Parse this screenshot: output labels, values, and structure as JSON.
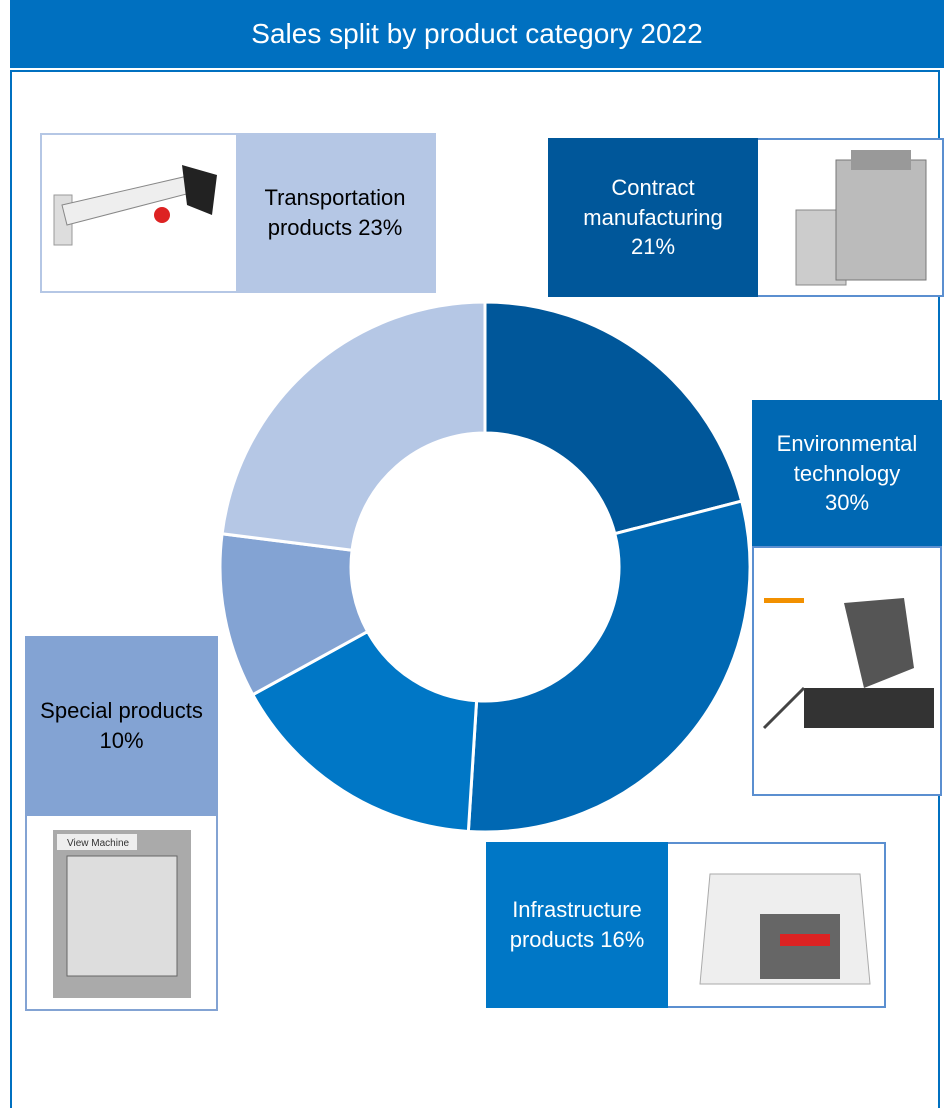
{
  "chart_data": {
    "type": "donut",
    "title": "Sales split by product category 2022",
    "categories": [
      "Contract manufacturing",
      "Environmental technology",
      "Infrastructure products",
      "Special products",
      "Transportation products"
    ],
    "values": [
      21,
      30,
      16,
      10,
      23
    ],
    "value_labels": [
      "21%",
      "30%",
      "16%",
      "10%",
      "23%"
    ],
    "colors": [
      "#00579a",
      "#0068b3",
      "#0077c6",
      "#83a3d3",
      "#b5c7e5"
    ],
    "annotations": [
      "View Machine"
    ]
  }
}
